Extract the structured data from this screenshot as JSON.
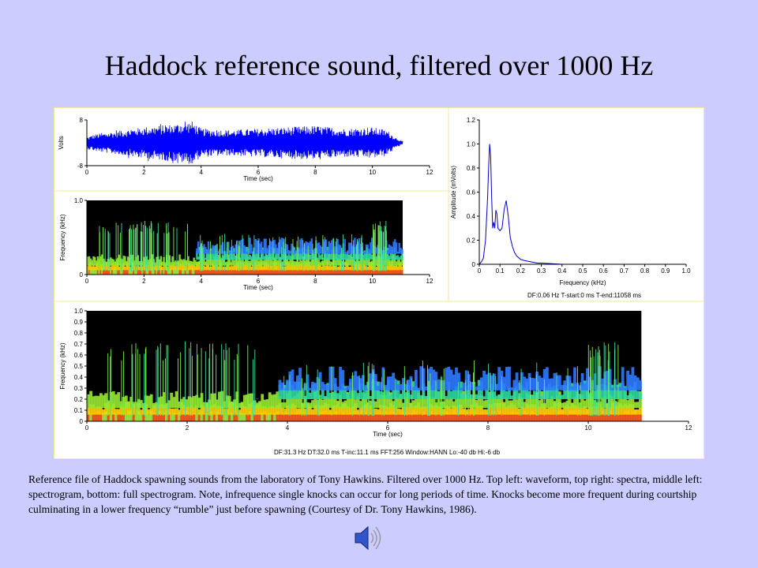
{
  "slide": {
    "title": "Haddock reference sound, filtered over 1000 Hz",
    "caption": "Reference file of Haddock spawning sounds from the laboratory of Tony Hawkins.  Filtered over 1000 Hz. Top left: waveform, top right: spectra, middle left:  spectrogram, bottom: full spectrogram.  Note, infrequence single knocks can occur for long periods of time.  Knocks become more frequent during courtship culminating in a lower frequency “rumble” just before spawning (Courtesy of Dr. Tony Hawkins, 1986).",
    "speaker_icon": "speaker-icon"
  },
  "colors": {
    "background": "#ccccff",
    "waveform": "#0000ff",
    "spectrum_line": "#0000cc",
    "spectrogram_bg": "#000000"
  },
  "chart_data": [
    {
      "id": "waveform",
      "type": "line",
      "description_source": "top left: waveform",
      "xlabel": "Time (sec)",
      "ylabel": "Volts",
      "xlim": [
        0,
        12
      ],
      "ylim": [
        -8,
        8
      ],
      "xticks": [
        "0",
        "2",
        "4",
        "6",
        "8",
        "10",
        "12"
      ],
      "yticks": [
        "8",
        "-8"
      ],
      "signal_end_sec": 11.06,
      "envelope": {
        "t": [
          0,
          0.3,
          1,
          2,
          3,
          3.3,
          3.7,
          4,
          5,
          6,
          7,
          8,
          9,
          10,
          10.5,
          10.8,
          11.06
        ],
        "amp": [
          2.0,
          3.0,
          4.0,
          5.5,
          6.5,
          7.0,
          7.5,
          5.0,
          4.5,
          5.0,
          5.5,
          6.0,
          5.0,
          5.5,
          4.5,
          2.0,
          0.5
        ]
      }
    },
    {
      "id": "spectrum",
      "type": "line",
      "description_source": "top right: spectra",
      "xlabel": "Frequency (kHz)",
      "ylabel": "Amplitude (mVolts)",
      "xlim": [
        0,
        1.0
      ],
      "ylim": [
        0,
        1.2
      ],
      "xticks": [
        "0",
        "0.1",
        "0.2",
        "0.3",
        "0.4",
        "0.5",
        "0.6",
        "0.7",
        "0.8",
        "0.9",
        "1.0"
      ],
      "yticks": [
        "0",
        "0.2",
        "0.4",
        "0.6",
        "0.8",
        "1.0",
        "1.2"
      ],
      "x": [
        0,
        0.01,
        0.02,
        0.03,
        0.04,
        0.045,
        0.05,
        0.055,
        0.06,
        0.065,
        0.07,
        0.075,
        0.08,
        0.085,
        0.09,
        0.1,
        0.11,
        0.12,
        0.13,
        0.14,
        0.15,
        0.16,
        0.17,
        0.18,
        0.2,
        0.22,
        0.25,
        0.28,
        0.3,
        0.35,
        0.4,
        0.5,
        0.6,
        0.7,
        0.8,
        0.9,
        1.0
      ],
      "y": [
        0,
        0.02,
        0.05,
        0.2,
        0.55,
        0.8,
        1.0,
        0.9,
        0.55,
        0.3,
        0.35,
        0.3,
        0.45,
        0.42,
        0.3,
        0.28,
        0.3,
        0.45,
        0.53,
        0.4,
        0.22,
        0.15,
        0.1,
        0.07,
        0.04,
        0.03,
        0.02,
        0.01,
        0.01,
        0.005,
        0.0,
        0.0,
        0.0,
        0.0,
        0.0,
        0.0,
        0.0
      ],
      "footer": "DF:0.06 Hz     T-start:0 ms     T-end:11058 ms"
    },
    {
      "id": "spectrogram-middle",
      "type": "heatmap",
      "description_source": "middle left: spectrogram",
      "xlabel": "Time (sec)",
      "ylabel": "Frequency (kHz)",
      "xlim": [
        0,
        12
      ],
      "ylim": [
        0,
        1.0
      ],
      "xticks": [
        "0",
        "2",
        "4",
        "6",
        "8",
        "10",
        "12"
      ],
      "yticks": [
        "0",
        "1.0"
      ],
      "data_end_sec": 11.06
    },
    {
      "id": "spectrogram-full",
      "type": "heatmap",
      "description_source": "bottom: full spectrogram",
      "xlabel": "Time (sec)",
      "ylabel": "Frequency (kHz)",
      "xlim": [
        0,
        12
      ],
      "ylim": [
        0,
        1.0
      ],
      "xticks": [
        "0",
        "2",
        "4",
        "6",
        "8",
        "10",
        "12"
      ],
      "yticks": [
        "0",
        "0.1",
        "0.2",
        "0.3",
        "0.4",
        "0.5",
        "0.6",
        "0.7",
        "0.8",
        "0.9",
        "1.0"
      ],
      "data_end_sec": 11.06,
      "footer": "DF:31.3 Hz    DT:32.0 ms    T-inc:11.1 ms    FFT:256    Window:HANN    Lo:-40 db    Hi:-6 db"
    }
  ]
}
